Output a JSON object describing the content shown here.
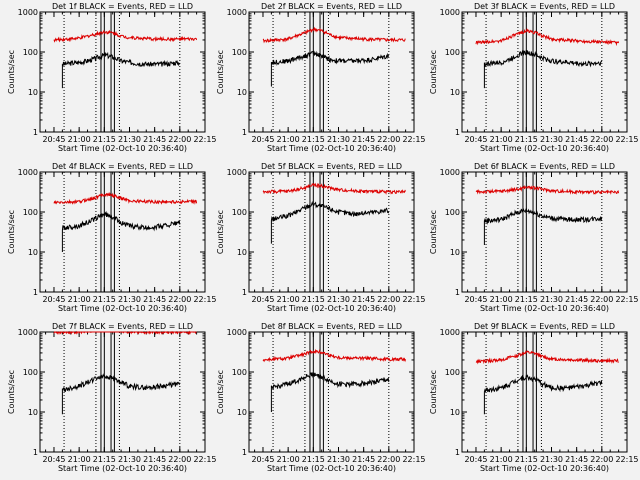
{
  "window": {
    "background": "#f2f2f2",
    "axis_color": "#000000",
    "events_color": "#000000",
    "lld_color": "#dd0000"
  },
  "chart_data": {
    "type": "line",
    "layout": "3x3",
    "shared": {
      "ylabel": "Counts/sec",
      "xlabel": "Start Time (02-Oct-10 20:36:40)",
      "yscale": "log",
      "ylim": [
        1,
        1000
      ],
      "ytick_values": [
        1,
        10,
        100,
        1000
      ],
      "ytick_labels": [
        "1",
        "10",
        "100",
        "1000"
      ],
      "xlim": [
        "20:36:40",
        "22:15:00"
      ],
      "xtick_values": [
        "20:45",
        "21:00",
        "21:15",
        "21:30",
        "21:45",
        "22:00",
        "22:15"
      ],
      "xtick_labels": [
        "20:45",
        "21:00",
        "21:15",
        "21:30",
        "21:45",
        "22:00",
        "22:15"
      ],
      "event_marker_lines": [
        "20:51",
        "21:10",
        "21:24",
        "22:00"
      ],
      "flare_box_lines": [
        "21:13",
        "21:15",
        "21:19",
        "21:21"
      ],
      "series_names": [
        "Events",
        "LLD"
      ],
      "series_colors": [
        "#000000",
        "#dd0000"
      ]
    },
    "panels": [
      {
        "title": "Det 1f BLACK = Events, RED = LLD",
        "series": [
          {
            "name": "Events",
            "t0": "20:50",
            "t1": "22:00",
            "x": [
              "20:50",
              "21:00",
              "21:05",
              "21:10",
              "21:15",
              "21:20",
              "21:25",
              "21:30",
              "21:40",
              "21:50",
              "22:00"
            ],
            "values": [
              50,
              55,
              60,
              70,
              85,
              75,
              60,
              55,
              50,
              50,
              55
            ]
          },
          {
            "name": "LLD",
            "t0": "20:45",
            "t1": "22:10",
            "x": [
              "20:45",
              "21:00",
              "21:10",
              "21:15",
              "21:20",
              "21:25",
              "21:30",
              "21:45",
              "22:00",
              "22:10"
            ],
            "values": [
              200,
              220,
              280,
              320,
              300,
              250,
              230,
              210,
              210,
              210
            ]
          }
        ]
      },
      {
        "title": "Det 2f BLACK = Events, RED = LLD",
        "series": [
          {
            "name": "Events",
            "t0": "20:50",
            "t1": "22:00",
            "x": [
              "20:50",
              "21:00",
              "21:05",
              "21:10",
              "21:15",
              "21:20",
              "21:25",
              "21:30",
              "21:40",
              "21:50",
              "22:00"
            ],
            "values": [
              55,
              60,
              70,
              80,
              95,
              80,
              65,
              60,
              60,
              65,
              80
            ]
          },
          {
            "name": "LLD",
            "t0": "20:45",
            "t1": "22:10",
            "x": [
              "20:45",
              "21:00",
              "21:10",
              "21:15",
              "21:20",
              "21:25",
              "21:30",
              "21:45",
              "22:00",
              "22:10"
            ],
            "values": [
              190,
              210,
              300,
              370,
              340,
              270,
              230,
              210,
              200,
              200
            ]
          }
        ]
      },
      {
        "title": "Det 3f BLACK = Events, RED = LLD",
        "series": [
          {
            "name": "Events",
            "t0": "20:50",
            "t1": "22:00",
            "x": [
              "20:50",
              "21:00",
              "21:05",
              "21:10",
              "21:15",
              "21:20",
              "21:25",
              "21:30",
              "21:40",
              "21:50",
              "22:00"
            ],
            "values": [
              50,
              55,
              65,
              85,
              100,
              85,
              70,
              60,
              55,
              50,
              55
            ]
          },
          {
            "name": "LLD",
            "t0": "20:45",
            "t1": "22:10",
            "x": [
              "20:45",
              "21:00",
              "21:10",
              "21:15",
              "21:20",
              "21:25",
              "21:30",
              "21:45",
              "22:00",
              "22:10"
            ],
            "values": [
              170,
              190,
              280,
              340,
              310,
              250,
              210,
              190,
              180,
              170
            ]
          }
        ]
      },
      {
        "title": "Det 4f BLACK = Events, RED = LLD",
        "series": [
          {
            "name": "Events",
            "t0": "20:50",
            "t1": "22:00",
            "x": [
              "20:50",
              "21:00",
              "21:05",
              "21:10",
              "21:15",
              "21:20",
              "21:25",
              "21:30",
              "21:40",
              "21:50",
              "22:00"
            ],
            "values": [
              40,
              45,
              55,
              70,
              90,
              75,
              55,
              45,
              40,
              45,
              55
            ]
          },
          {
            "name": "LLD",
            "t0": "20:45",
            "t1": "22:10",
            "x": [
              "20:45",
              "21:00",
              "21:10",
              "21:15",
              "21:20",
              "21:25",
              "21:30",
              "21:45",
              "22:00",
              "22:10"
            ],
            "values": [
              170,
              180,
              230,
              280,
              260,
              220,
              190,
              180,
              180,
              180
            ]
          }
        ]
      },
      {
        "title": "Det 5f BLACK = Events, RED = LLD",
        "series": [
          {
            "name": "Events",
            "t0": "20:50",
            "t1": "22:00",
            "x": [
              "20:50",
              "21:00",
              "21:05",
              "21:10",
              "21:15",
              "21:20",
              "21:25",
              "21:30",
              "21:40",
              "21:50",
              "22:00"
            ],
            "values": [
              65,
              80,
              100,
              130,
              160,
              140,
              120,
              100,
              90,
              100,
              110
            ]
          },
          {
            "name": "LLD",
            "t0": "20:45",
            "t1": "22:10",
            "x": [
              "20:45",
              "21:00",
              "21:10",
              "21:15",
              "21:20",
              "21:25",
              "21:30",
              "21:45",
              "22:00",
              "22:10"
            ],
            "values": [
              320,
              330,
              400,
              480,
              450,
              400,
              360,
              330,
              320,
              320
            ]
          }
        ]
      },
      {
        "title": "Det 6f BLACK = Events, RED = LLD",
        "series": [
          {
            "name": "Events",
            "t0": "20:50",
            "t1": "22:00",
            "x": [
              "20:50",
              "21:00",
              "21:05",
              "21:10",
              "21:15",
              "21:20",
              "21:25",
              "21:30",
              "21:40",
              "21:50",
              "22:00"
            ],
            "values": [
              60,
              65,
              80,
              100,
              110,
              95,
              80,
              70,
              65,
              65,
              70
            ]
          },
          {
            "name": "LLD",
            "t0": "20:45",
            "t1": "22:10",
            "x": [
              "20:45",
              "21:00",
              "21:10",
              "21:15",
              "21:20",
              "21:25",
              "21:30",
              "21:45",
              "22:00",
              "22:10"
            ],
            "values": [
              320,
              330,
              370,
              420,
              400,
              370,
              340,
              320,
              310,
              310
            ]
          }
        ]
      },
      {
        "title": "Det 7f BLACK = Events, RED = LLD",
        "series": [
          {
            "name": "Events",
            "t0": "20:50",
            "t1": "22:00",
            "x": [
              "20:50",
              "21:00",
              "21:05",
              "21:10",
              "21:15",
              "21:20",
              "21:25",
              "21:30",
              "21:40",
              "21:50",
              "22:00"
            ],
            "values": [
              35,
              45,
              55,
              70,
              80,
              70,
              55,
              45,
              40,
              45,
              50
            ]
          },
          {
            "name": "LLD",
            "t0": "20:45",
            "t1": "22:10",
            "x": [
              "20:45",
              "21:00",
              "21:10",
              "21:15",
              "21:20",
              "21:25",
              "21:30",
              "21:45",
              "22:00",
              "22:10"
            ],
            "values": [
              1000,
              1000,
              1100,
              1200,
              1150,
              1050,
              1000,
              1000,
              1000,
              1000
            ]
          }
        ]
      },
      {
        "title": "Det 8f BLACK = Events, RED = LLD",
        "series": [
          {
            "name": "Events",
            "t0": "20:50",
            "t1": "22:00",
            "x": [
              "20:50",
              "21:00",
              "21:05",
              "21:10",
              "21:15",
              "21:20",
              "21:25",
              "21:30",
              "21:40",
              "21:50",
              "22:00"
            ],
            "values": [
              40,
              50,
              60,
              75,
              90,
              75,
              60,
              50,
              50,
              55,
              65
            ]
          },
          {
            "name": "LLD",
            "t0": "20:45",
            "t1": "22:10",
            "x": [
              "20:45",
              "21:00",
              "21:10",
              "21:15",
              "21:20",
              "21:25",
              "21:30",
              "21:45",
              "22:00",
              "22:10"
            ],
            "values": [
              200,
              220,
              280,
              330,
              310,
              260,
              230,
              220,
              210,
              210
            ]
          }
        ]
      },
      {
        "title": "Det 9f BLACK = Events, RED = LLD",
        "series": [
          {
            "name": "Events",
            "t0": "20:50",
            "t1": "22:00",
            "x": [
              "20:50",
              "21:00",
              "21:05",
              "21:10",
              "21:15",
              "21:20",
              "21:25",
              "21:30",
              "21:40",
              "21:50",
              "22:00"
            ],
            "values": [
              35,
              40,
              50,
              65,
              75,
              65,
              50,
              40,
              40,
              45,
              55
            ]
          },
          {
            "name": "LLD",
            "t0": "20:45",
            "t1": "22:10",
            "x": [
              "20:45",
              "21:00",
              "21:10",
              "21:15",
              "21:20",
              "21:25",
              "21:30",
              "21:45",
              "22:00",
              "22:10"
            ],
            "values": [
              180,
              200,
              260,
              310,
              290,
              240,
              210,
              200,
              190,
              190
            ]
          }
        ]
      }
    ]
  }
}
